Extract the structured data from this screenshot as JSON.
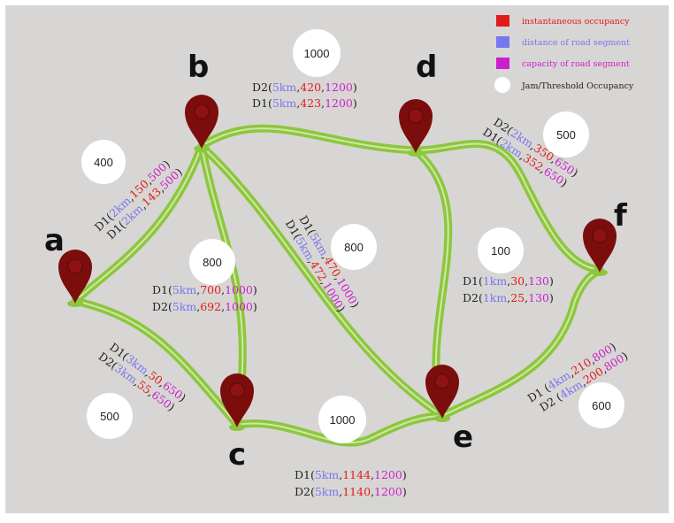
{
  "colors": {
    "background": "#d8d6d4",
    "road": "#8dc63f",
    "road_light": "#cfe8a4",
    "pin": "#7b0d0d",
    "pin_inner": "#8e1212",
    "occupancy": "#e11b1b",
    "distance": "#7777ee",
    "capacity": "#cc1fcc",
    "text": "#222222"
  },
  "legend": [
    {
      "label": "instantaneous occupancy",
      "color": "#e11b1b"
    },
    {
      "label": "distance of road segment",
      "color": "#7777ee"
    },
    {
      "label": "capacity of road segment",
      "color": "#cc1fcc"
    },
    {
      "label": "Jam/Threshold Occupancy",
      "color": "#ffffff"
    }
  ],
  "nodes": {
    "a": {
      "letter": "a"
    },
    "b": {
      "letter": "b"
    },
    "c": {
      "letter": "c"
    },
    "d": {
      "letter": "d"
    },
    "e": {
      "letter": "e"
    },
    "f": {
      "letter": "f"
    }
  },
  "circles": [
    {
      "id": "ab",
      "value": "400"
    },
    {
      "id": "bd",
      "value": "1000"
    },
    {
      "id": "df",
      "value": "500"
    },
    {
      "id": "bc",
      "value": "800"
    },
    {
      "id": "be",
      "value": "800"
    },
    {
      "id": "de",
      "value": "100"
    },
    {
      "id": "ac",
      "value": "500"
    },
    {
      "id": "ce",
      "value": "1000"
    },
    {
      "id": "ef",
      "value": "600"
    }
  ],
  "labels": {
    "bd_1": {
      "prefix": "D2(",
      "distance": "5km",
      "occupancy": "420",
      "capacity": "1200",
      "suffix": ")"
    },
    "bd_2": {
      "prefix": "D1(",
      "distance": "5km",
      "occupancy": "423",
      "capacity": "1200",
      "suffix": ")"
    },
    "df_1": {
      "prefix": "D2(",
      "distance": "2km",
      "occupancy": "350",
      "capacity": "650",
      "suffix": ")"
    },
    "df_2": {
      "prefix": "D1(",
      "distance": "2km",
      "occupancy": "352",
      "capacity": "650",
      "suffix": ")"
    },
    "ab_1": {
      "prefix": "D1(",
      "distance": "2km",
      "occupancy": "150",
      "capacity": "500",
      "suffix": ")"
    },
    "ab_2": {
      "prefix": "D1(",
      "distance": "2km",
      "occupancy": "143",
      "capacity": "500",
      "suffix": ")"
    },
    "bc_1": {
      "prefix": "D1(",
      "distance": "5km",
      "occupancy": "700",
      "capacity": "1000",
      "suffix": ")"
    },
    "bc_2": {
      "prefix": "D2(",
      "distance": "5km",
      "occupancy": "692",
      "capacity": "1000",
      "suffix": ")"
    },
    "be_1": {
      "prefix": "D1(",
      "distance": "5km",
      "occupancy": "470",
      "capacity": "1000",
      "suffix": ")"
    },
    "be_2": {
      "prefix": "D1(",
      "distance": "5km",
      "occupancy": "472",
      "capacity": "1000",
      "suffix": ")"
    },
    "de_1": {
      "prefix": "D1(",
      "distance": "1km",
      "occupancy": "30",
      "capacity": "130",
      "suffix": ")"
    },
    "de_2": {
      "prefix": "D2(",
      "distance": "1km",
      "occupancy": "25",
      "capacity": "130",
      "suffix": ")"
    },
    "ac_1": {
      "prefix": "D1(",
      "distance": "3km",
      "occupancy": "50",
      "capacity": "650",
      "suffix": ")"
    },
    "ac_2": {
      "prefix": "D2(",
      "distance": "3km",
      "occupancy": "55",
      "capacity": "650",
      "suffix": ")"
    },
    "ce_1": {
      "prefix": "D1(",
      "distance": "5km",
      "occupancy": "1144",
      "capacity": "1200",
      "suffix": ")"
    },
    "ce_2": {
      "prefix": "D2(",
      "distance": "5km",
      "occupancy": "1140",
      "capacity": "1200",
      "suffix": ")"
    },
    "ef_1": {
      "prefix": "D1 (",
      "distance": "4km",
      "occupancy": "210",
      "capacity": "800",
      "suffix": ")"
    },
    "ef_2": {
      "prefix": "D2 (",
      "distance": "4km",
      "occupancy": "200",
      "capacity": "800",
      "suffix": ")"
    }
  }
}
